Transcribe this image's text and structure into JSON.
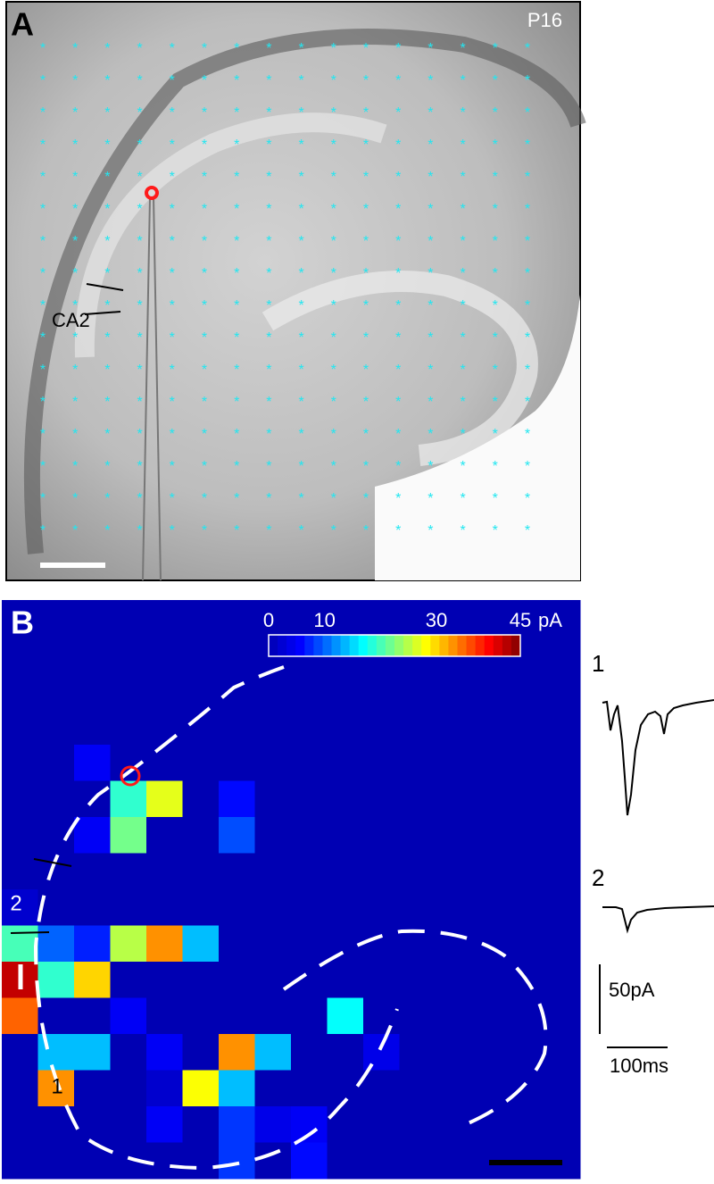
{
  "panel_a": {
    "label": "A",
    "age": "P16",
    "region": "CA2"
  },
  "panel_b": {
    "label": "B",
    "colorbar": {
      "ticks": [
        0,
        10,
        30,
        45
      ],
      "unit": "pA"
    },
    "heatmap": {
      "values": [
        [
          0,
          0,
          0,
          0,
          0,
          0,
          0,
          0,
          0,
          0,
          0,
          0,
          0,
          0,
          0,
          0
        ],
        [
          0,
          0,
          0,
          0,
          0,
          0,
          0,
          0,
          0,
          0,
          0,
          0,
          0,
          0,
          0,
          0
        ],
        [
          0,
          0,
          0,
          0,
          0,
          0,
          0,
          0,
          0,
          0,
          0,
          0,
          0,
          0,
          0,
          0
        ],
        [
          0,
          0,
          0,
          0,
          0,
          0,
          0,
          0,
          0,
          0,
          0,
          0,
          0,
          0,
          0,
          0
        ],
        [
          0,
          0,
          5,
          0,
          0,
          0,
          0,
          0,
          0,
          0,
          0,
          0,
          0,
          0,
          0,
          0
        ],
        [
          0,
          0,
          0,
          19,
          27,
          0,
          6,
          0,
          0,
          0,
          0,
          0,
          0,
          0,
          0,
          0
        ],
        [
          0,
          0,
          5,
          22,
          0,
          0,
          9,
          0,
          0,
          0,
          0,
          0,
          0,
          0,
          0,
          0
        ],
        [
          0,
          0,
          0,
          0,
          0,
          0,
          0,
          0,
          0,
          0,
          0,
          0,
          0,
          0,
          0,
          0
        ],
        [
          2,
          0,
          0,
          0,
          0,
          0,
          0,
          0,
          0,
          0,
          0,
          0,
          0,
          0,
          0,
          0
        ],
        [
          20,
          10,
          7,
          25,
          33,
          14,
          0,
          0,
          0,
          0,
          0,
          0,
          0,
          0,
          0,
          0
        ],
        [
          42,
          19,
          30,
          0,
          0,
          0,
          0,
          0,
          0,
          0,
          0,
          0,
          0,
          0,
          0,
          0
        ],
        [
          35,
          0,
          0,
          5,
          0,
          0,
          0,
          0,
          0,
          17,
          0,
          0,
          0,
          0,
          0,
          0
        ],
        [
          0,
          14,
          14,
          0,
          5,
          0,
          33,
          14,
          0,
          0,
          4,
          0,
          0,
          0,
          0,
          0
        ],
        [
          0,
          33,
          0,
          0,
          2,
          28,
          14,
          0,
          0,
          0,
          0,
          0,
          0,
          0,
          0,
          0
        ],
        [
          0,
          0,
          0,
          0,
          5,
          0,
          8,
          4,
          5,
          0,
          0,
          0,
          0,
          0,
          0,
          0
        ],
        [
          0,
          0,
          0,
          0,
          0,
          0,
          8,
          0,
          6,
          0,
          0,
          0,
          0,
          0,
          0,
          0
        ]
      ]
    },
    "cell_labels": [
      "2",
      "1"
    ],
    "traces": {
      "labels": [
        "1",
        "2"
      ],
      "amplitude_scale": "50pA",
      "time_scale": "100ms"
    }
  }
}
